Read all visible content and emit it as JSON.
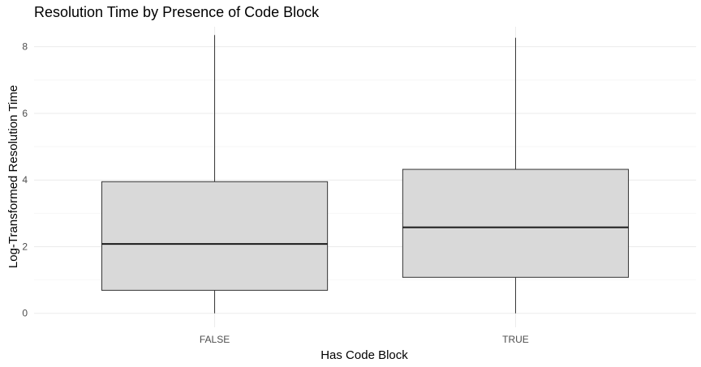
{
  "chart_data": {
    "type": "boxplot",
    "title": "Resolution Time by Presence of Code Block",
    "xlabel": "Has Code Block",
    "ylabel": "Log-Transformed Resolution Time",
    "categories": [
      "FALSE",
      "TRUE"
    ],
    "boxes": [
      {
        "category": "FALSE",
        "min": 0.0,
        "q1": 0.69,
        "median": 2.08,
        "q3": 3.95,
        "max": 8.35
      },
      {
        "category": "TRUE",
        "min": 0.0,
        "q1": 1.08,
        "median": 2.58,
        "q3": 4.32,
        "max": 8.27
      }
    ],
    "y_ticks": [
      0,
      2,
      4,
      6,
      8
    ],
    "ylim": [
      -0.42,
      8.6
    ],
    "grid": true,
    "legend": "none",
    "colors": {
      "box_fill": "#d9d9d9",
      "box_stroke": "#333333",
      "median": "#1a1a1a",
      "whisker": "#333333",
      "grid_major": "#ebebeb",
      "grid_minor": "#f5f5f5"
    }
  }
}
